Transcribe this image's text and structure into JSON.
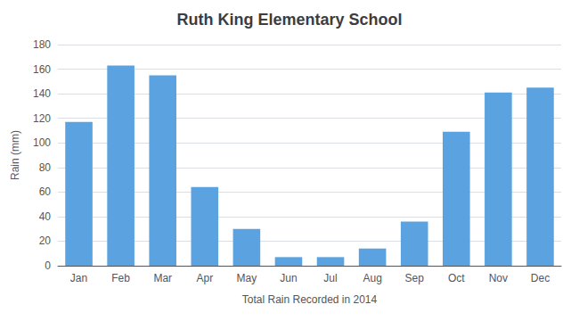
{
  "chart_data": {
    "type": "bar",
    "title": "Ruth King Elementary School",
    "xlabel": "Total Rain Recorded in 2014",
    "ylabel": "Rain (mm)",
    "categories": [
      "Jan",
      "Feb",
      "Mar",
      "Apr",
      "May",
      "Jun",
      "Jul",
      "Aug",
      "Sep",
      "Oct",
      "Nov",
      "Dec"
    ],
    "values": [
      117,
      163,
      155,
      64,
      30,
      7,
      7,
      14,
      36,
      109,
      141,
      145
    ],
    "color": "#5ba3e0",
    "ylim": [
      0,
      180
    ],
    "yticks": [
      0,
      20,
      40,
      60,
      80,
      100,
      120,
      140,
      160,
      180
    ],
    "grid": true
  }
}
